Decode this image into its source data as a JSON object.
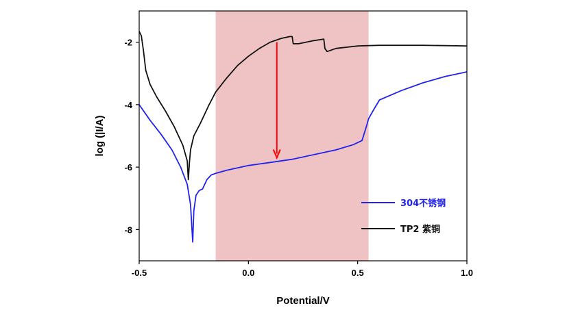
{
  "chart_data": {
    "type": "line",
    "xlabel": "Potential/V",
    "ylabel": "log (|I/A)",
    "xlim": [
      -0.5,
      1.0
    ],
    "ylim": [
      -9.0,
      -1.0
    ],
    "x_ticks": [
      -0.5,
      0.0,
      0.5,
      1.0
    ],
    "x_tick_labels": [
      "-0.5",
      "0.0",
      "0.5",
      "1.0"
    ],
    "y_ticks": [
      -8,
      -6,
      -4,
      -2
    ],
    "y_tick_labels": [
      "-8",
      "-6",
      "-4",
      "-2"
    ],
    "grid": false,
    "legend_position": "bottom-right",
    "highlight_region": {
      "x_range": [
        -0.15,
        0.55
      ],
      "color": "#efc3c3"
    },
    "annotation_arrow": {
      "x": 0.13,
      "y_from": -2.0,
      "y_to": -5.7,
      "color": "#ff0000"
    },
    "series": [
      {
        "name": "304不锈钢",
        "color": "#2222ee",
        "points": [
          [
            -0.5,
            -4.0
          ],
          [
            -0.45,
            -4.5
          ],
          [
            -0.4,
            -4.95
          ],
          [
            -0.35,
            -5.45
          ],
          [
            -0.31,
            -6.0
          ],
          [
            -0.28,
            -6.55
          ],
          [
            -0.265,
            -7.2
          ],
          [
            -0.255,
            -8.4
          ],
          [
            -0.25,
            -7.4
          ],
          [
            -0.24,
            -6.9
          ],
          [
            -0.225,
            -6.75
          ],
          [
            -0.21,
            -6.7
          ],
          [
            -0.19,
            -6.4
          ],
          [
            -0.17,
            -6.25
          ],
          [
            -0.15,
            -6.2
          ],
          [
            -0.1,
            -6.1
          ],
          [
            0.0,
            -5.95
          ],
          [
            0.1,
            -5.85
          ],
          [
            0.2,
            -5.75
          ],
          [
            0.3,
            -5.6
          ],
          [
            0.4,
            -5.45
          ],
          [
            0.48,
            -5.28
          ],
          [
            0.52,
            -5.15
          ],
          [
            0.54,
            -4.7
          ],
          [
            0.55,
            -4.45
          ],
          [
            0.57,
            -4.2
          ],
          [
            0.6,
            -3.85
          ],
          [
            0.7,
            -3.55
          ],
          [
            0.8,
            -3.3
          ],
          [
            0.9,
            -3.1
          ],
          [
            1.0,
            -2.95
          ]
        ]
      },
      {
        "name": "TP2 紫铜",
        "color": "#111111",
        "points": [
          [
            -0.5,
            -1.65
          ],
          [
            -0.49,
            -1.8
          ],
          [
            -0.48,
            -2.3
          ],
          [
            -0.47,
            -2.9
          ],
          [
            -0.45,
            -3.35
          ],
          [
            -0.42,
            -3.75
          ],
          [
            -0.38,
            -4.2
          ],
          [
            -0.34,
            -4.7
          ],
          [
            -0.3,
            -5.3
          ],
          [
            -0.28,
            -5.8
          ],
          [
            -0.275,
            -6.4
          ],
          [
            -0.27,
            -5.85
          ],
          [
            -0.265,
            -5.45
          ],
          [
            -0.25,
            -5.0
          ],
          [
            -0.22,
            -4.6
          ],
          [
            -0.18,
            -4.0
          ],
          [
            -0.15,
            -3.6
          ],
          [
            -0.1,
            -3.15
          ],
          [
            -0.05,
            -2.75
          ],
          [
            0.0,
            -2.45
          ],
          [
            0.05,
            -2.2
          ],
          [
            0.1,
            -2.0
          ],
          [
            0.15,
            -1.88
          ],
          [
            0.19,
            -1.82
          ],
          [
            0.2,
            -1.82
          ],
          [
            0.205,
            -2.05
          ],
          [
            0.23,
            -2.05
          ],
          [
            0.3,
            -1.95
          ],
          [
            0.345,
            -1.9
          ],
          [
            0.35,
            -2.2
          ],
          [
            0.36,
            -2.3
          ],
          [
            0.4,
            -2.2
          ],
          [
            0.5,
            -2.12
          ],
          [
            0.6,
            -2.1
          ],
          [
            0.8,
            -2.1
          ],
          [
            1.0,
            -2.12
          ]
        ]
      }
    ]
  }
}
